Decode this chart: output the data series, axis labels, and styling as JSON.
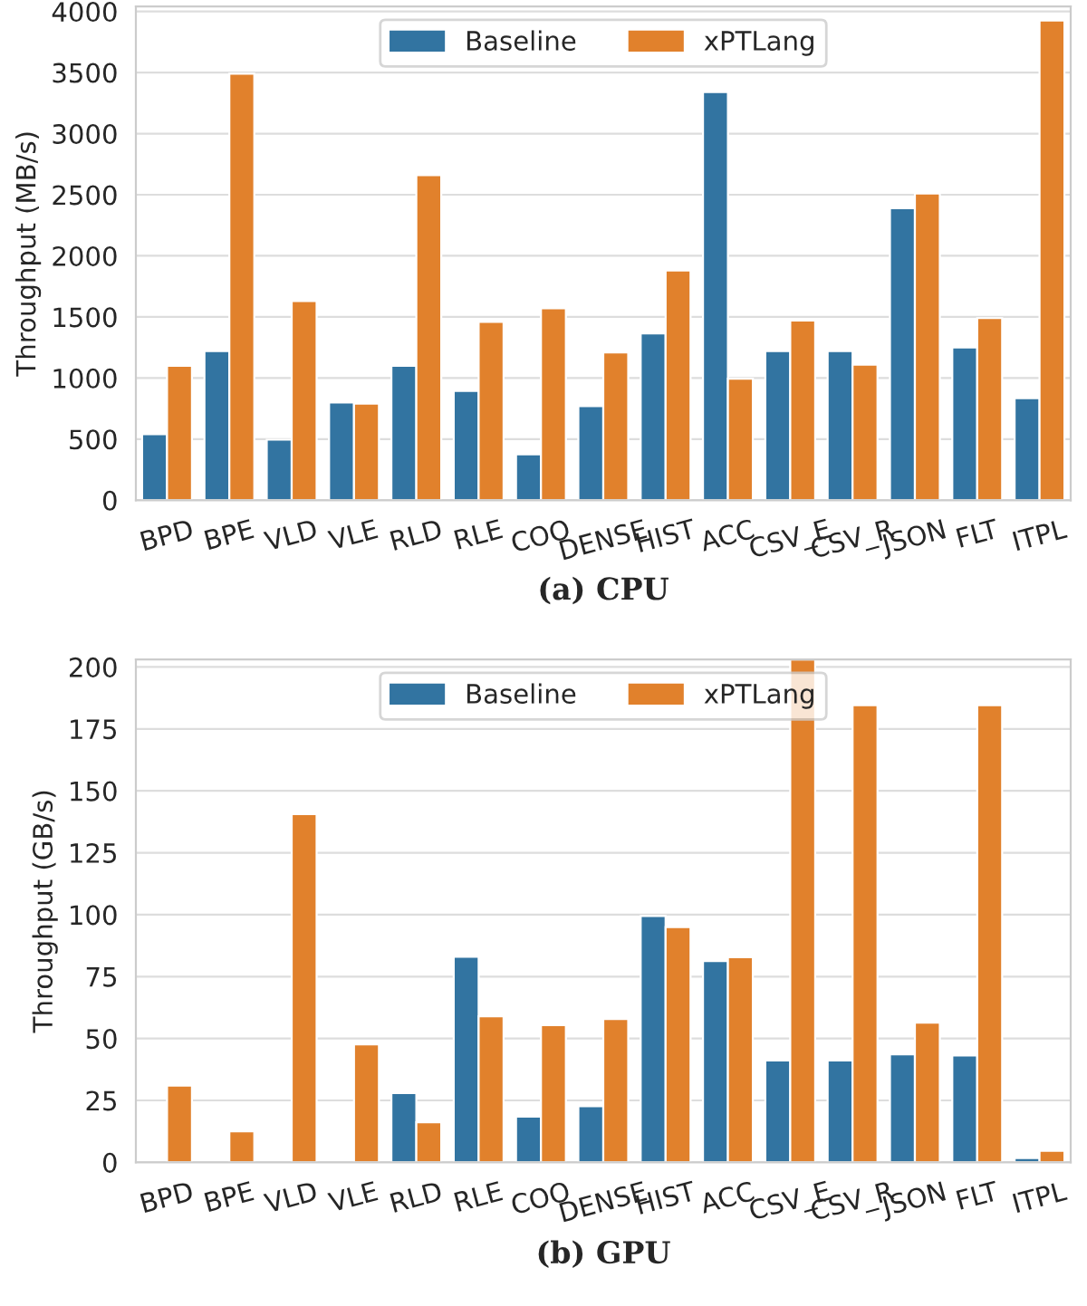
{
  "chart_data": [
    {
      "type": "bar",
      "title": "(a) CPU",
      "ylabel": "Throughput (MB/s)",
      "categories": [
        "BPD",
        "BPE",
        "VLD",
        "VLE",
        "RLD",
        "RLE",
        "COO",
        "DENSE",
        "HIST",
        "ACC",
        "CSV_E",
        "CSV_R",
        "JSON",
        "FLT",
        "ITPL"
      ],
      "series": [
        {
          "name": "Baseline",
          "color": "#3274a1",
          "values": [
            540,
            1220,
            495,
            800,
            1100,
            895,
            375,
            770,
            1365,
            3340,
            1220,
            1220,
            2390,
            1250,
            835
          ]
        },
        {
          "name": "xPTLang",
          "color": "#e1812c",
          "values": [
            1100,
            3490,
            1630,
            790,
            2660,
            1460,
            1570,
            1210,
            1880,
            995,
            1470,
            1110,
            2510,
            1490,
            3925
          ]
        }
      ],
      "ylim": [
        0,
        4040
      ],
      "yticks": [
        0,
        500,
        1000,
        1500,
        2000,
        2500,
        3000,
        3500,
        4000
      ],
      "grid": "y",
      "legend": "top"
    },
    {
      "type": "bar",
      "title": "(b) GPU",
      "ylabel": "Throughput (GB/s)",
      "categories": [
        "BPD",
        "BPE",
        "VLD",
        "VLE",
        "RLD",
        "RLE",
        "COO",
        "DENSE",
        "HIST",
        "ACC",
        "CSV_E",
        "CSV_R",
        "JSON",
        "FLT",
        "ITPL"
      ],
      "series": [
        {
          "name": "Baseline",
          "color": "#3274a1",
          "values": [
            null,
            null,
            null,
            null,
            28,
            83,
            18.5,
            22.7,
            99.5,
            81.3,
            41.1,
            41.1,
            43.6,
            43.1,
            1.7
          ]
        },
        {
          "name": "xPTLang",
          "color": "#e1812c",
          "values": [
            31,
            12.5,
            140.6,
            47.6,
            16.2,
            59,
            55.4,
            57.9,
            95,
            82.8,
            203,
            184.6,
            56.4,
            184.6,
            4.7
          ]
        }
      ],
      "ylim": [
        0,
        203
      ],
      "yticks": [
        0,
        25,
        50,
        75,
        100,
        125,
        150,
        175,
        200
      ],
      "grid": "y",
      "legend": "top"
    }
  ]
}
